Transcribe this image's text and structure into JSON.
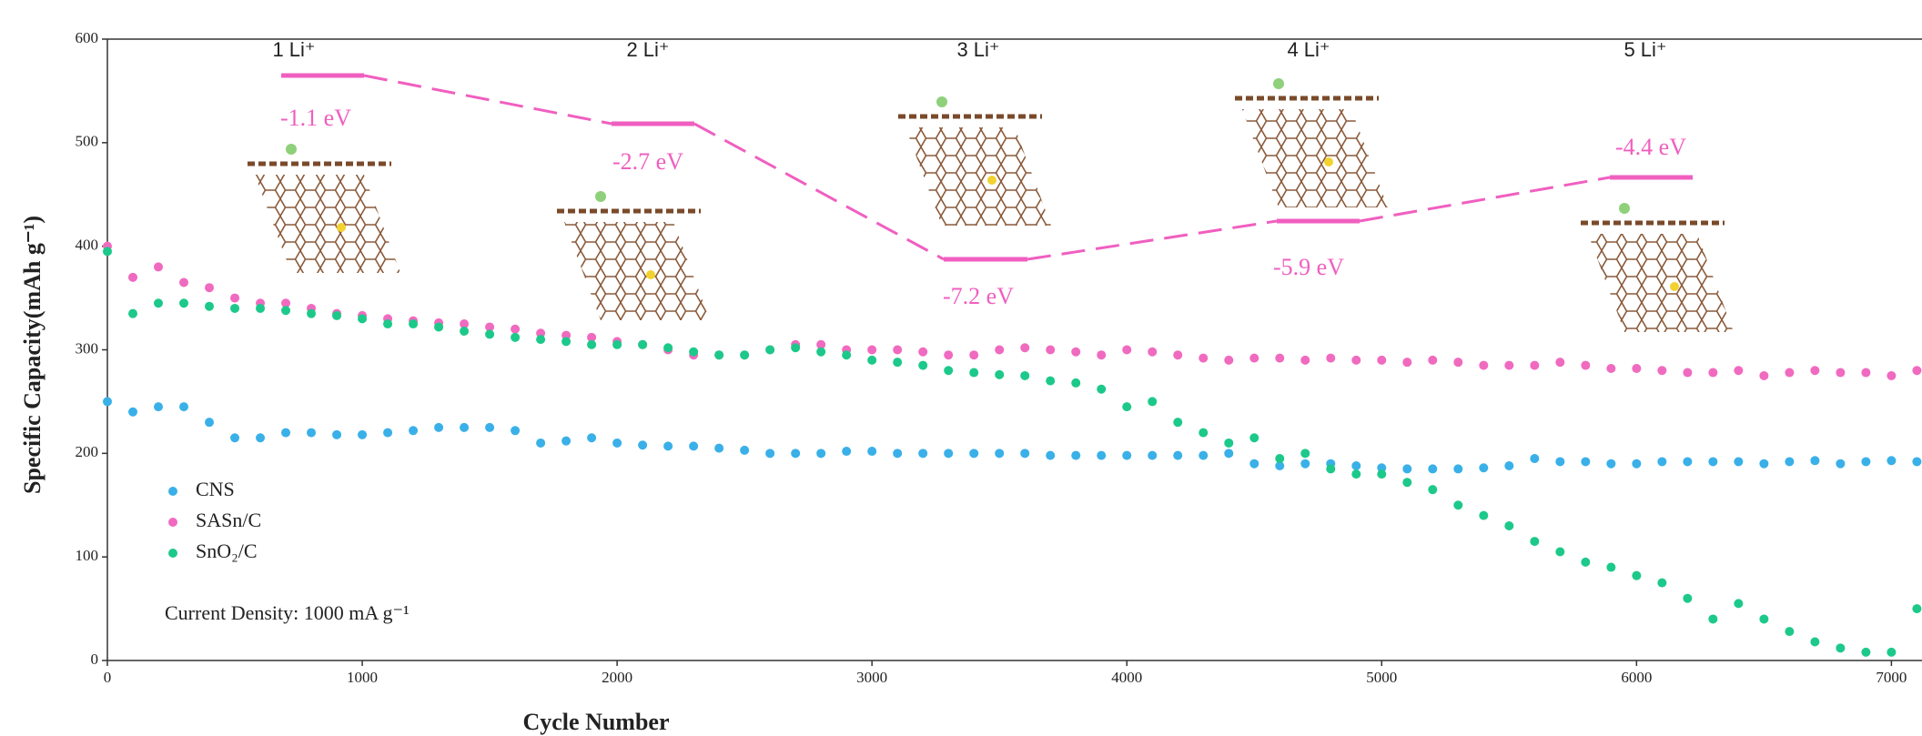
{
  "chart_data": {
    "type": "scatter",
    "x_label": "Cycle Number",
    "y_label": "Specific Capacity(mAh g⁻¹)",
    "xlim": [
      0,
      7120
    ],
    "ylim": [
      0,
      600
    ],
    "xticks": [
      0,
      1000,
      2000,
      3000,
      4000,
      5000,
      6000,
      7000
    ],
    "yticks": [
      0,
      100,
      200,
      300,
      400,
      500,
      600
    ],
    "grid": false,
    "legend": "lower left",
    "note": "Current Density: 1000 mA g⁻¹",
    "x": [
      0,
      100,
      200,
      300,
      400,
      500,
      600,
      700,
      800,
      900,
      1000,
      1100,
      1200,
      1300,
      1400,
      1500,
      1600,
      1700,
      1800,
      1900,
      2000,
      2100,
      2200,
      2300,
      2400,
      2500,
      2600,
      2700,
      2800,
      2900,
      3000,
      3100,
      3200,
      3300,
      3400,
      3500,
      3600,
      3700,
      3800,
      3900,
      4000,
      4100,
      4200,
      4300,
      4400,
      4500,
      4600,
      4700,
      4800,
      4900,
      5000,
      5100,
      5200,
      5300,
      5400,
      5500,
      5600,
      5700,
      5800,
      5900,
      6000,
      6100,
      6200,
      6300,
      6400,
      6500,
      6600,
      6700,
      6800,
      6900,
      7000,
      7100
    ],
    "series": [
      {
        "name": "CNS",
        "color": "#3ab0e8",
        "values": [
          250,
          240,
          245,
          245,
          230,
          215,
          215,
          220,
          220,
          218,
          218,
          220,
          222,
          225,
          225,
          225,
          222,
          210,
          212,
          215,
          210,
          208,
          207,
          207,
          205,
          203,
          200,
          200,
          200,
          202,
          202,
          200,
          200,
          200,
          200,
          200,
          200,
          198,
          198,
          198,
          198,
          198,
          198,
          198,
          200,
          190,
          188,
          190,
          190,
          188,
          186,
          185,
          185,
          185,
          186,
          188,
          195,
          192,
          192,
          190,
          190,
          192,
          192,
          192,
          192,
          190,
          192,
          193,
          190,
          192,
          193,
          192
        ]
      },
      {
        "name": "SASn/C",
        "color": "#f06ac0",
        "values": [
          400,
          370,
          380,
          365,
          360,
          350,
          345,
          345,
          340,
          335,
          333,
          330,
          328,
          326,
          325,
          322,
          320,
          316,
          314,
          312,
          308,
          305,
          300,
          295,
          295,
          295,
          300,
          305,
          305,
          300,
          300,
          300,
          298,
          295,
          295,
          300,
          302,
          300,
          298,
          295,
          300,
          298,
          295,
          292,
          290,
          292,
          292,
          290,
          292,
          290,
          290,
          288,
          290,
          288,
          285,
          285,
          285,
          288,
          285,
          282,
          282,
          280,
          278,
          278,
          280,
          275,
          278,
          280,
          278,
          278,
          275,
          280
        ]
      },
      {
        "name": "SnO₂/C",
        "color": "#1dc98a",
        "values": [
          395,
          335,
          345,
          345,
          342,
          340,
          340,
          338,
          335,
          333,
          330,
          325,
          325,
          322,
          318,
          315,
          312,
          310,
          308,
          305,
          305,
          305,
          302,
          298,
          295,
          295,
          300,
          302,
          298,
          295,
          290,
          288,
          285,
          280,
          278,
          276,
          275,
          270,
          268,
          262,
          245,
          250,
          230,
          220,
          210,
          215,
          195,
          200,
          185,
          180,
          180,
          172,
          165,
          150,
          140,
          130,
          115,
          105,
          95,
          90,
          82,
          75,
          60,
          40,
          55,
          40,
          28,
          18,
          12,
          8,
          8,
          50
        ]
      }
    ],
    "ion_labels": [
      "1 Li⁺",
      "2 Li⁺",
      "3 Li⁺",
      "4 Li⁺",
      "5 Li⁺"
    ],
    "energy_labels": [
      "-1.1 eV",
      "-2.7 eV",
      "-7.2 eV",
      "-5.9 eV",
      "-4.4 eV"
    ]
  }
}
